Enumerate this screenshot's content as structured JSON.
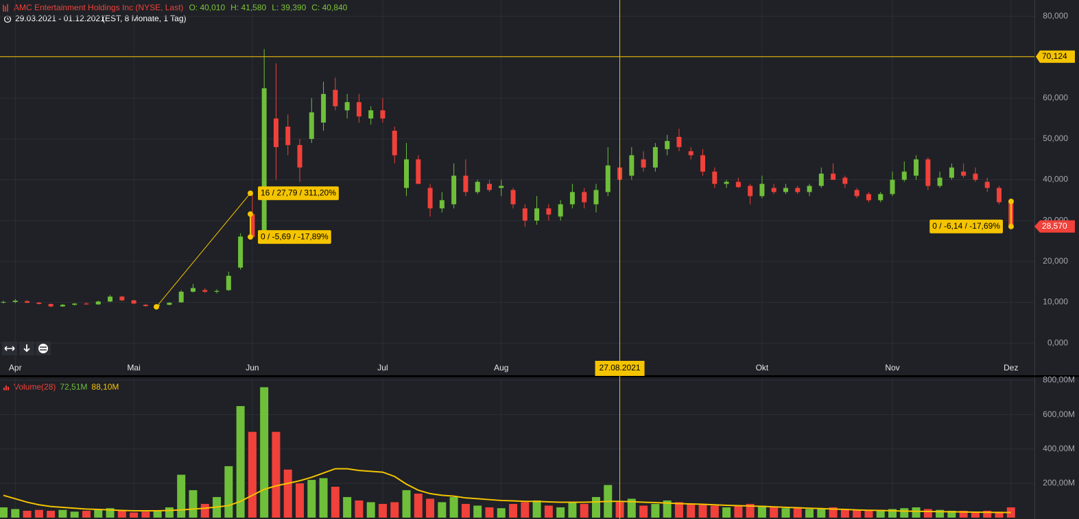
{
  "chart_data": [
    {
      "type": "candlestick",
      "title": "AMC Entertainment Holdings Inc (NYSE, Last)",
      "info": [
        "O: 40,010",
        "H: 41,580",
        "L: 39,390",
        "C: 40,840"
      ],
      "date_range": "29.03.2021 - 01.12.2021",
      "period": "(EST, 8 Monate, 1 Tag)",
      "categories": [
        null,
        "Apr",
        null,
        null,
        null,
        null,
        null,
        null,
        null,
        null,
        null,
        "Mai",
        null,
        null,
        null,
        null,
        null,
        null,
        null,
        null,
        null,
        "Jun",
        null,
        null,
        null,
        null,
        null,
        null,
        null,
        null,
        null,
        null,
        "Jul",
        null,
        null,
        null,
        null,
        null,
        null,
        null,
        null,
        null,
        "Aug",
        null,
        null,
        null,
        null,
        null,
        null,
        null,
        null,
        null,
        "27.08.2021",
        null,
        null,
        null,
        null,
        null,
        null,
        null,
        null,
        null,
        null,
        null,
        "Okt",
        null,
        null,
        null,
        null,
        null,
        null,
        null,
        null,
        null,
        null,
        "Nov",
        null,
        null,
        null,
        null,
        null,
        null,
        null,
        null,
        null,
        "Dez"
      ],
      "open": [
        10.0,
        10.1,
        10.3,
        9.9,
        9.6,
        9.0,
        9.4,
        9.7,
        9.5,
        10.2,
        11.4,
        10.5,
        9.4,
        9.1,
        9.4,
        10.0,
        12.6,
        13.0,
        12.6,
        13.0,
        18.5,
        31.6,
        26.0,
        55.0,
        53.0,
        48.5,
        50.0,
        54.0,
        62.0,
        57.0,
        59.0,
        55.0,
        57.0,
        52.0,
        38.0,
        45.0,
        38.0,
        33.0,
        34.0,
        41.0,
        37.0,
        39.0,
        38.0,
        37.5,
        33.0,
        30.0,
        33.0,
        31.0,
        34.0,
        37.0,
        34.0,
        37.0,
        43.0,
        41.0,
        45.0,
        43.0,
        47.5,
        50.5,
        47.0,
        46.0,
        42.0,
        39.0,
        39.5,
        38.5,
        36.0,
        38.0,
        37.0,
        38.0,
        37.0,
        38.5,
        41.5,
        40.5,
        37.5,
        36.5,
        35.0,
        36.5,
        40.0,
        41.0,
        45.0,
        38.5,
        40.5,
        42.0,
        41.5,
        39.5,
        38.0,
        34.5
      ],
      "high": [
        10.4,
        10.8,
        10.5,
        10.1,
        9.7,
        9.6,
        9.8,
        10.0,
        10.4,
        11.8,
        11.6,
        10.6,
        9.6,
        9.5,
        10.0,
        13.0,
        14.5,
        13.5,
        13.2,
        17.5,
        26.9,
        36.7,
        72.0,
        68.5,
        56.0,
        50.0,
        60.0,
        64.0,
        65.0,
        61.0,
        61.0,
        58.0,
        60.0,
        53.0,
        49.0,
        46.0,
        39.0,
        37.0,
        44.0,
        45.0,
        40.0,
        40.0,
        40.0,
        38.0,
        34.0,
        36.0,
        34.0,
        35.0,
        39.0,
        38.0,
        39.0,
        48.0,
        46.0,
        48.0,
        47.0,
        49.0,
        51.0,
        52.5,
        48.0,
        47.5,
        43.0,
        40.0,
        40.5,
        39.0,
        41.0,
        39.0,
        39.0,
        38.5,
        39.0,
        43.0,
        44.0,
        41.0,
        38.0,
        37.0,
        37.0,
        42.0,
        44.5,
        46.0,
        45.5,
        42.0,
        44.0,
        44.0,
        43.0,
        40.5,
        38.5,
        34.8
      ],
      "low": [
        9.7,
        9.8,
        9.8,
        9.5,
        8.8,
        8.9,
        9.2,
        9.4,
        9.4,
        10.1,
        10.3,
        9.6,
        8.9,
        9.0,
        9.3,
        9.9,
        12.4,
        12.3,
        12.2,
        12.8,
        18.0,
        25.5,
        25.5,
        40.0,
        46.0,
        39.5,
        49.0,
        52.0,
        57.0,
        55.0,
        54.0,
        53.5,
        54.0,
        44.0,
        36.0,
        39.0,
        31.0,
        32.0,
        33.0,
        36.0,
        36.5,
        37.0,
        36.0,
        33.0,
        28.5,
        29.0,
        30.0,
        30.0,
        33.0,
        33.0,
        32.0,
        36.0,
        39.5,
        40.0,
        42.0,
        42.0,
        46.0,
        47.0,
        45.0,
        41.0,
        38.0,
        38.0,
        38.0,
        34.0,
        35.5,
        36.5,
        36.5,
        36.5,
        36.0,
        38.0,
        40.0,
        38.0,
        35.5,
        34.5,
        34.5,
        36.0,
        39.5,
        40.0,
        37.5,
        38.0,
        40.0,
        40.5,
        39.5,
        37.0,
        34.0,
        27.8
      ],
      "close": [
        10.1,
        10.4,
        9.9,
        9.6,
        9.0,
        9.4,
        9.7,
        9.5,
        10.2,
        11.4,
        10.5,
        9.7,
        9.1,
        9.4,
        9.9,
        12.6,
        13.5,
        12.6,
        12.8,
        16.5,
        26.1,
        26.0,
        62.4,
        48.0,
        48.5,
        43.0,
        56.5,
        61.0,
        58.0,
        59.0,
        55.5,
        57.0,
        55.0,
        46.0,
        45.0,
        39.0,
        33.0,
        35.0,
        41.0,
        37.0,
        39.5,
        37.5,
        38.5,
        34.0,
        30.0,
        33.0,
        31.5,
        34.0,
        37.0,
        34.5,
        37.5,
        43.5,
        40.0,
        46.0,
        43.0,
        48.0,
        49.5,
        48.0,
        46.0,
        42.0,
        39.0,
        39.5,
        38.2,
        36.0,
        39.0,
        37.0,
        38.0,
        37.0,
        38.5,
        41.5,
        40.0,
        39.0,
        36.0,
        35.0,
        36.5,
        40.0,
        42.0,
        45.0,
        38.5,
        40.5,
        43.0,
        41.0,
        40.0,
        38.0,
        34.5,
        28.57
      ],
      "up_color": "#6fbf3a",
      "down_color": "#f0413a",
      "ylim": [
        -7.5,
        84
      ],
      "yticks": [
        {
          "value": 0,
          "label": "0,000"
        },
        {
          "value": 10,
          "label": "10,000"
        },
        {
          "value": 20,
          "label": "20,000"
        },
        {
          "value": 30,
          "label": "30,000"
        },
        {
          "value": 40,
          "label": "40,000"
        },
        {
          "value": 50,
          "label": "50,000"
        },
        {
          "value": 60,
          "label": "60,000"
        },
        {
          "value": 70,
          "label": "70,000"
        },
        {
          "value": 80,
          "label": "80,000"
        }
      ],
      "grid": true,
      "crosshair": {
        "x": "27.08.2021",
        "y": 70.124,
        "y_label": "70,124",
        "color": "#f5c400"
      },
      "last": {
        "value": 28.57,
        "label": "28,570",
        "color": "#f0413a"
      },
      "measures": [
        {
          "label": "16 / 27,79 / 311,20%",
          "points": [
            8.9,
            36.7
          ]
        },
        {
          "label": "0 / -5,69 / -17,89%",
          "points": [
            31.6,
            26.0
          ]
        },
        {
          "label": "0 / -6,14 / -17,69%",
          "points": [
            34.7,
            28.57
          ]
        }
      ]
    },
    {
      "type": "bar",
      "title": "Volume(28)",
      "series": [
        {
          "name": "72,51M",
          "color": "#6fbf3a",
          "values": [
            60,
            50,
            40,
            45,
            40,
            45,
            35,
            40,
            45,
            55,
            40,
            30,
            35,
            40,
            60,
            250,
            160,
            80,
            120,
            300,
            650,
            500,
            760,
            500,
            280,
            200,
            220,
            230,
            180,
            120,
            100,
            90,
            80,
            90,
            160,
            140,
            110,
            90,
            120,
            80,
            70,
            60,
            55,
            80,
            90,
            100,
            70,
            60,
            90,
            80,
            120,
            190,
            90,
            110,
            70,
            80,
            100,
            90,
            80,
            75,
            70,
            60,
            70,
            80,
            70,
            60,
            55,
            60,
            50,
            55,
            60,
            50,
            45,
            40,
            45,
            50,
            55,
            60,
            50,
            45,
            40,
            40,
            35,
            40,
            35,
            60
          ]
        },
        {
          "name": "88,10M",
          "color": "#f5c400",
          "type": "line",
          "values": [
            130,
            110,
            90,
            75,
            65,
            60,
            55,
            50,
            48,
            45,
            42,
            40,
            40,
            40,
            42,
            45,
            50,
            55,
            62,
            70,
            95,
            130,
            165,
            185,
            200,
            215,
            235,
            260,
            285,
            285,
            275,
            270,
            265,
            240,
            195,
            160,
            140,
            130,
            125,
            115,
            110,
            105,
            100,
            98,
            95,
            95,
            92,
            90,
            90,
            90,
            92,
            95,
            95,
            93,
            90,
            88,
            85,
            82,
            80,
            78,
            75,
            72,
            70,
            68,
            66,
            63,
            60,
            58,
            55,
            53,
            50,
            48,
            45,
            43,
            42,
            40,
            38,
            37,
            36,
            35,
            34,
            33,
            32,
            31,
            30,
            30
          ]
        }
      ],
      "ylim": [
        0,
        810
      ],
      "yticks": [
        {
          "value": 200,
          "label": "200,00M"
        },
        {
          "value": 400,
          "label": "400,00M"
        },
        {
          "value": 600,
          "label": "600,00M"
        },
        {
          "value": 800,
          "label": "800,00M"
        }
      ],
      "grid": true
    }
  ]
}
